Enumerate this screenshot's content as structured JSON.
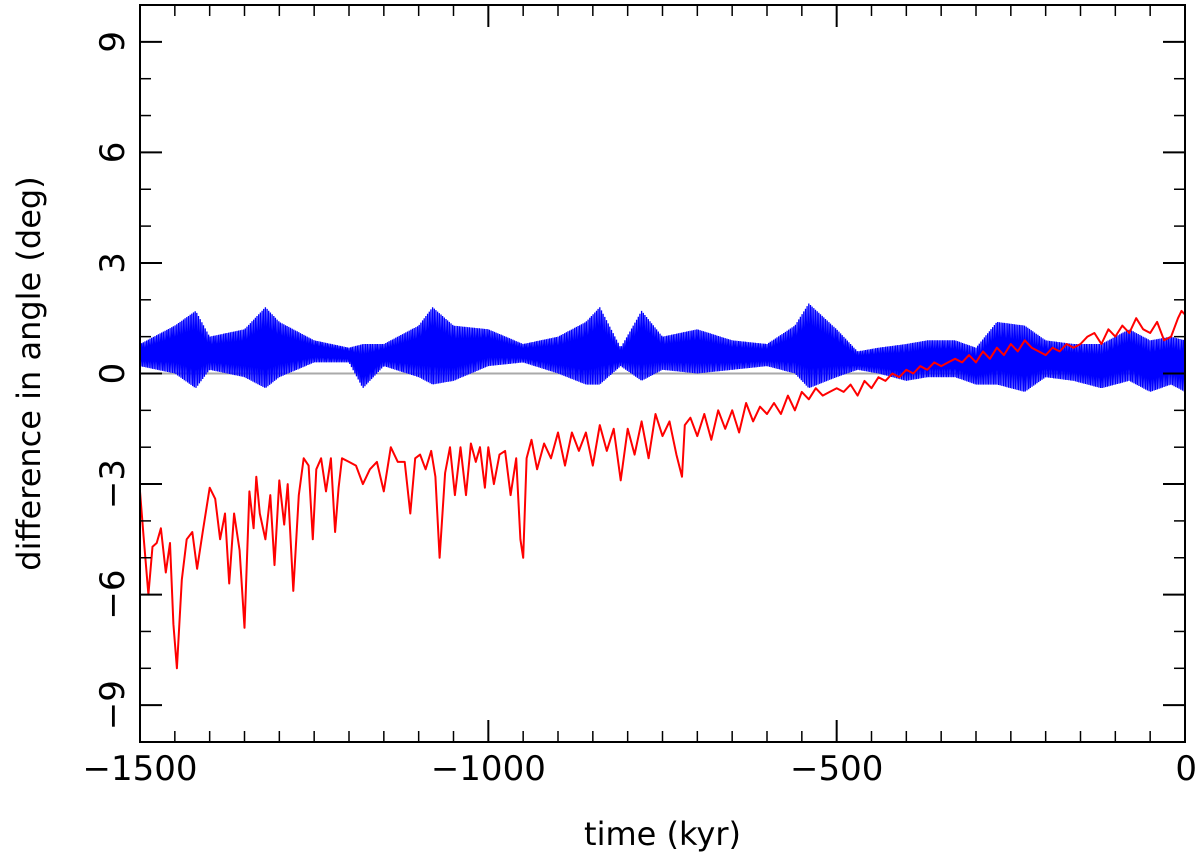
{
  "chart_data": {
    "type": "line",
    "title": "",
    "xlabel": "time (kyr)",
    "ylabel": "difference in angle (deg)",
    "xlim": [
      -1500,
      0
    ],
    "ylim": [
      -10,
      10
    ],
    "x_ticks": [
      -1500,
      -1000,
      -500,
      0
    ],
    "x_tick_labels": [
      "−1500",
      "−1000",
      "−500",
      "0"
    ],
    "y_ticks": [
      -9,
      -6,
      -3,
      0,
      3,
      6,
      9
    ],
    "y_tick_labels": [
      "−9",
      "−6",
      "−3",
      "0",
      "3",
      "6",
      "9"
    ],
    "reference_line": {
      "y": 0,
      "color": "#aaaaaa"
    },
    "series": [
      {
        "name": "blue",
        "color": "#0000ff",
        "style": "band",
        "x": [
          -1500,
          -1450,
          -1420,
          -1400,
          -1350,
          -1320,
          -1300,
          -1250,
          -1200,
          -1180,
          -1150,
          -1100,
          -1080,
          -1050,
          -1000,
          -950,
          -900,
          -860,
          -840,
          -810,
          -780,
          -750,
          -700,
          -650,
          -600,
          -560,
          -540,
          -500,
          -470,
          -440,
          -400,
          -370,
          -330,
          -300,
          -270,
          -230,
          -200,
          -160,
          -120,
          -80,
          -50,
          -20,
          0
        ],
        "upper": [
          0.8,
          1.3,
          1.7,
          1.0,
          1.2,
          1.8,
          1.4,
          0.9,
          0.7,
          0.8,
          0.8,
          1.3,
          1.8,
          1.3,
          1.2,
          0.8,
          1.0,
          1.4,
          1.8,
          0.7,
          1.7,
          1.0,
          1.2,
          0.9,
          0.8,
          1.3,
          1.9,
          1.2,
          0.6,
          0.7,
          0.8,
          0.9,
          0.9,
          0.7,
          1.4,
          1.3,
          0.9,
          0.8,
          0.8,
          1.2,
          0.9,
          1.0,
          0.9
        ],
        "lower": [
          0.2,
          0.0,
          -0.4,
          0.1,
          -0.1,
          -0.4,
          -0.1,
          0.3,
          0.3,
          -0.4,
          0.2,
          -0.1,
          -0.3,
          -0.2,
          0.2,
          0.3,
          0.0,
          -0.3,
          -0.3,
          0.2,
          -0.2,
          0.1,
          0.0,
          0.1,
          0.2,
          0.0,
          -0.4,
          -0.1,
          0.1,
          0.0,
          -0.2,
          -0.1,
          -0.1,
          -0.3,
          -0.3,
          -0.5,
          -0.1,
          -0.2,
          -0.4,
          -0.2,
          -0.5,
          -0.3,
          -0.5
        ]
      },
      {
        "name": "red",
        "color": "#ff0000",
        "x": [
          -1500,
          -1495,
          -1488,
          -1482,
          -1476,
          -1470,
          -1463,
          -1457,
          -1452,
          -1447,
          -1440,
          -1433,
          -1425,
          -1418,
          -1410,
          -1400,
          -1392,
          -1385,
          -1378,
          -1372,
          -1365,
          -1357,
          -1350,
          -1343,
          -1337,
          -1333,
          -1328,
          -1320,
          -1313,
          -1307,
          -1300,
          -1293,
          -1288,
          -1280,
          -1272,
          -1265,
          -1258,
          -1252,
          -1247,
          -1240,
          -1233,
          -1226,
          -1220,
          -1215,
          -1210,
          -1200,
          -1190,
          -1180,
          -1170,
          -1160,
          -1150,
          -1140,
          -1130,
          -1120,
          -1112,
          -1105,
          -1098,
          -1090,
          -1082,
          -1076,
          -1070,
          -1062,
          -1055,
          -1048,
          -1040,
          -1032,
          -1025,
          -1018,
          -1012,
          -1005,
          -1000,
          -992,
          -984,
          -976,
          -968,
          -960,
          -954,
          -950,
          -945,
          -938,
          -930,
          -920,
          -910,
          -900,
          -890,
          -880,
          -870,
          -860,
          -850,
          -840,
          -830,
          -820,
          -810,
          -800,
          -790,
          -780,
          -770,
          -760,
          -750,
          -740,
          -730,
          -722,
          -718,
          -710,
          -700,
          -690,
          -680,
          -670,
          -660,
          -650,
          -640,
          -630,
          -620,
          -610,
          -600,
          -590,
          -580,
          -570,
          -560,
          -550,
          -540,
          -530,
          -520,
          -510,
          -500,
          -490,
          -480,
          -470,
          -460,
          -450,
          -440,
          -430,
          -420,
          -410,
          -400,
          -390,
          -380,
          -370,
          -360,
          -350,
          -340,
          -330,
          -320,
          -310,
          -300,
          -290,
          -280,
          -270,
          -260,
          -250,
          -240,
          -230,
          -220,
          -210,
          -200,
          -190,
          -180,
          -170,
          -160,
          -150,
          -140,
          -130,
          -120,
          -110,
          -100,
          -90,
          -80,
          -70,
          -60,
          -50,
          -40,
          -30,
          -20,
          -10,
          -5,
          0
        ],
        "y": [
          -3.2,
          -4.4,
          -6.0,
          -4.7,
          -4.6,
          -4.2,
          -5.4,
          -4.6,
          -6.8,
          -8.0,
          -5.6,
          -4.5,
          -4.3,
          -5.3,
          -4.3,
          -3.1,
          -3.4,
          -4.5,
          -3.8,
          -5.7,
          -3.8,
          -4.8,
          -6.9,
          -3.2,
          -4.2,
          -2.8,
          -3.8,
          -4.5,
          -3.3,
          -5.2,
          -2.9,
          -4.1,
          -3.0,
          -5.9,
          -3.3,
          -2.3,
          -2.5,
          -4.5,
          -2.6,
          -2.3,
          -3.2,
          -2.3,
          -4.3,
          -3.1,
          -2.3,
          -2.4,
          -2.5,
          -3.0,
          -2.6,
          -2.4,
          -3.2,
          -2.0,
          -2.4,
          -2.4,
          -3.8,
          -2.3,
          -2.2,
          -2.6,
          -2.1,
          -2.8,
          -5.0,
          -2.7,
          -2.0,
          -3.3,
          -2.0,
          -3.3,
          -1.9,
          -2.4,
          -2.0,
          -3.1,
          -2.0,
          -3.0,
          -2.2,
          -2.1,
          -3.3,
          -2.3,
          -4.5,
          -5.0,
          -2.3,
          -1.8,
          -2.6,
          -1.9,
          -2.3,
          -1.6,
          -2.5,
          -1.6,
          -2.1,
          -1.6,
          -2.5,
          -1.4,
          -2.1,
          -1.5,
          -2.9,
          -1.5,
          -2.2,
          -1.3,
          -2.3,
          -1.1,
          -1.7,
          -1.3,
          -2.2,
          -2.8,
          -1.4,
          -1.2,
          -1.7,
          -1.1,
          -1.8,
          -1.0,
          -1.5,
          -1.0,
          -1.6,
          -0.8,
          -1.3,
          -0.9,
          -1.1,
          -0.8,
          -1.1,
          -0.6,
          -1.0,
          -0.5,
          -0.7,
          -0.4,
          -0.6,
          -0.5,
          -0.4,
          -0.5,
          -0.3,
          -0.6,
          -0.2,
          -0.4,
          -0.1,
          -0.2,
          0.0,
          -0.1,
          0.1,
          0.0,
          0.2,
          0.1,
          0.3,
          0.2,
          0.3,
          0.4,
          0.3,
          0.5,
          0.3,
          0.6,
          0.4,
          0.7,
          0.5,
          0.8,
          0.6,
          0.9,
          0.7,
          0.6,
          0.5,
          0.7,
          0.6,
          0.8,
          0.7,
          0.8,
          1.0,
          1.1,
          0.8,
          1.2,
          1.0,
          1.3,
          1.1,
          1.5,
          1.2,
          1.1,
          1.4,
          0.9,
          1.0,
          1.5,
          1.7,
          1.6
        ]
      }
    ]
  }
}
